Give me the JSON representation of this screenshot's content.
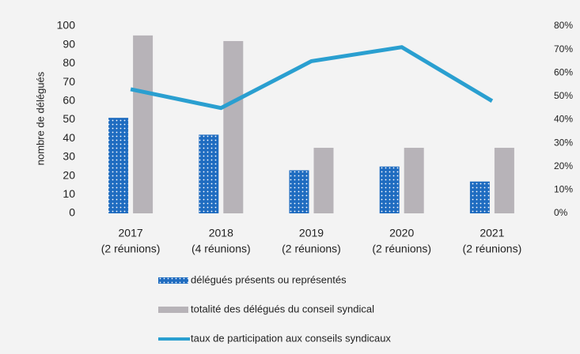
{
  "chart_data": {
    "type": "bar",
    "y_label": "nombre de délégués",
    "categories": [
      [
        "2017",
        "(2 réunions)"
      ],
      [
        "2018",
        "(4 réunions)"
      ],
      [
        "2019",
        "(2 réunions)"
      ],
      [
        "2020",
        "(2 réunions)"
      ],
      [
        "2021",
        "(2 réunions)"
      ]
    ],
    "series": [
      {
        "name": "délégués présents ou représentés",
        "type": "bar",
        "color": "#1f6cc0",
        "values": [
          51,
          42,
          23,
          25,
          17
        ]
      },
      {
        "name": "totalité des délégués du conseil syndical",
        "type": "bar",
        "color": "#b7b3b8",
        "values": [
          95,
          92,
          35,
          35,
          35
        ]
      },
      {
        "name": "taux de participation aux conseils syndicaux",
        "type": "line",
        "axis": "y2",
        "color": "#2a9fd0",
        "values": [
          53,
          45,
          65,
          71,
          48
        ]
      }
    ],
    "ylim": [
      0,
      100
    ],
    "yticks": [
      0,
      10,
      20,
      30,
      40,
      50,
      60,
      70,
      80,
      90,
      100
    ],
    "y2lim": [
      0,
      80
    ],
    "y2ticks": [
      {
        "value": 0,
        "label": "0%"
      },
      {
        "value": 10,
        "label": "10%"
      },
      {
        "value": 20,
        "label": "20%"
      },
      {
        "value": 30,
        "label": "30%"
      },
      {
        "value": 40,
        "label": "40%"
      },
      {
        "value": 50,
        "label": "50%"
      },
      {
        "value": 60,
        "label": "60%"
      },
      {
        "value": 70,
        "label": "70%"
      },
      {
        "value": 80,
        "label": "80%"
      }
    ]
  }
}
